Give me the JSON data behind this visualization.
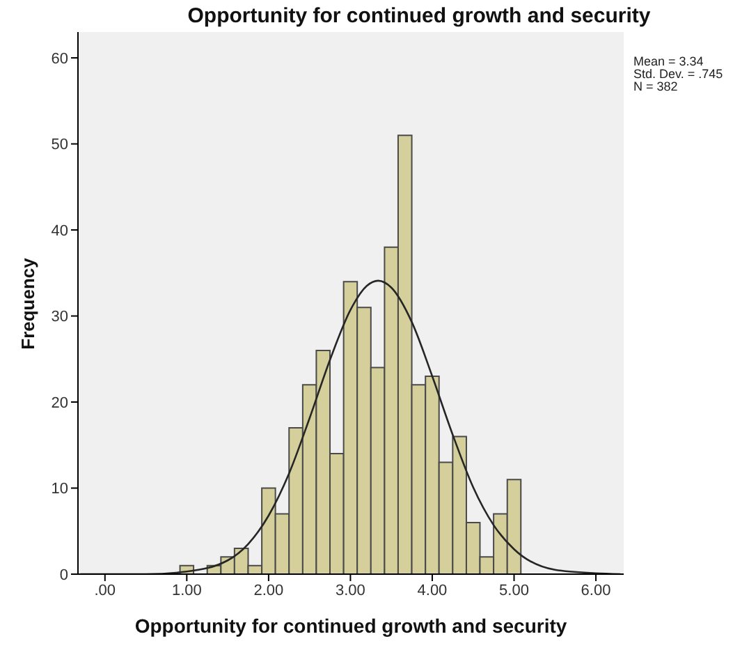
{
  "chart_data": {
    "type": "histogram",
    "title": "Opportunity for continued growth and security",
    "xlabel": "Opportunity for continued growth and security",
    "ylabel": "Frequency",
    "series": [
      {
        "color": "#d4cf9b",
        "bins": [
          0.917,
          1.083,
          1.25,
          1.417,
          1.583,
          1.75,
          1.917,
          2.083,
          2.25,
          2.417,
          2.583,
          2.75,
          2.917,
          3.083,
          3.25,
          3.417,
          3.583,
          3.75,
          3.917,
          4.083,
          4.25,
          4.417,
          4.583,
          4.75,
          4.917,
          5.083
        ],
        "values": [
          1,
          0,
          1,
          2,
          3,
          1,
          10,
          7,
          17,
          22,
          26,
          14,
          34,
          31,
          24,
          38,
          51,
          22,
          23,
          13,
          16,
          6,
          2,
          7,
          11
        ]
      },
      {
        "type": "line",
        "color": "#262626",
        "marker": "none",
        "x": [
          -0.3,
          0.5,
          1.0,
          1.5,
          1.75,
          2.0,
          2.25,
          2.5,
          2.75,
          3.0,
          3.2,
          3.34,
          3.5,
          3.75,
          4.0,
          4.25,
          4.5,
          4.75,
          5.0,
          5.5,
          6.0,
          6.3
        ],
        "values": [
          0,
          0,
          0.3,
          1.6,
          3.5,
          6.8,
          11.7,
          18.1,
          24.9,
          30.7,
          33.5,
          34.1,
          33.3,
          29.3,
          23.0,
          16.2,
          10.1,
          5.7,
          2.9,
          0.5,
          0.1,
          0
        ]
      }
    ],
    "xlim": [
      -0.33,
      6.34
    ],
    "xticks": [
      {
        "value": 0,
        "label": ".00"
      },
      {
        "value": 1,
        "label": "1.00"
      },
      {
        "value": 2,
        "label": "2.00"
      },
      {
        "value": 3,
        "label": "3.00"
      },
      {
        "value": 4,
        "label": "4.00"
      },
      {
        "value": 5,
        "label": "5.00"
      },
      {
        "value": 6,
        "label": "6.00"
      }
    ],
    "ylim": [
      0,
      63
    ],
    "yticks": [
      0,
      10,
      20,
      30,
      40,
      50,
      60
    ],
    "annotations": [
      "Mean = 3.34",
      "Std. Dev. = .745",
      "N = 382"
    ]
  }
}
